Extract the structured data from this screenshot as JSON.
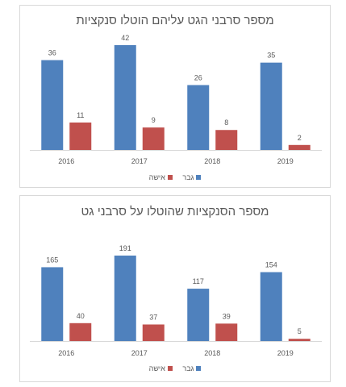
{
  "chart_data": [
    {
      "type": "bar",
      "title": "מספר סרבני הגט עליהם הוטלו סנקציות",
      "categories": [
        "2016",
        "2017",
        "2018",
        "2019"
      ],
      "series": [
        {
          "name": "גבר",
          "values": [
            36,
            42,
            26,
            35
          ],
          "color": "#4f81bd"
        },
        {
          "name": "אישה",
          "values": [
            11,
            9,
            8,
            2
          ],
          "color": "#c0504d"
        }
      ],
      "ylim": [
        0,
        42
      ],
      "grid": false,
      "legend_position": "bottom"
    },
    {
      "type": "bar",
      "title": "מספר הסנקציות שהוטלו על סרבני גט",
      "categories": [
        "2016",
        "2017",
        "2018",
        "2019"
      ],
      "series": [
        {
          "name": "גבר",
          "values": [
            165,
            191,
            117,
            154
          ],
          "color": "#4f81bd"
        },
        {
          "name": "אישה",
          "values": [
            40,
            37,
            39,
            5
          ],
          "color": "#c0504d"
        }
      ],
      "ylim": [
        0,
        191
      ],
      "grid": false,
      "legend_position": "bottom"
    }
  ]
}
